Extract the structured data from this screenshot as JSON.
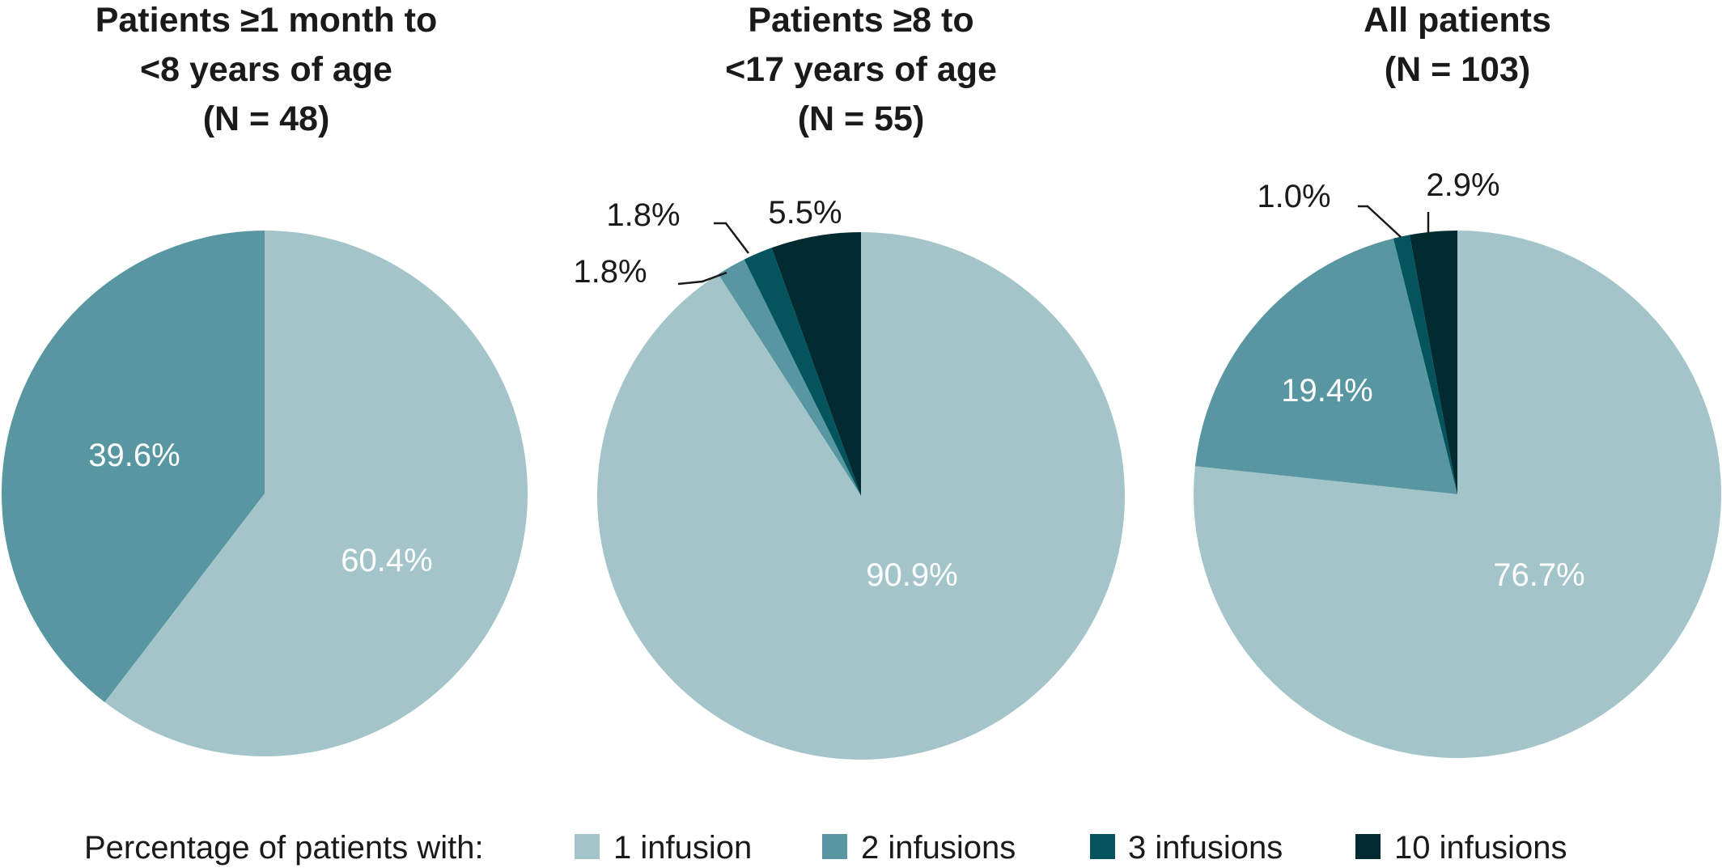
{
  "chart_data": [
    {
      "type": "pie",
      "title_lines": [
        "Patients ≥1 month to",
        "<8 years of age",
        "(N = 48)"
      ],
      "slices": [
        {
          "category": "1 infusion",
          "value": 60.4,
          "label": "60.4%"
        },
        {
          "category": "2 infusions",
          "value": 39.6,
          "label": "39.6%"
        }
      ]
    },
    {
      "type": "pie",
      "title_lines": [
        "Patients ≥8 to",
        "<17 years of age",
        "(N = 55)"
      ],
      "slices": [
        {
          "category": "1 infusion",
          "value": 90.9,
          "label": "90.9%"
        },
        {
          "category": "2 infusions",
          "value": 1.8,
          "label": "1.8%"
        },
        {
          "category": "3 infusions",
          "value": 1.8,
          "label": "1.8%"
        },
        {
          "category": "10 infusions",
          "value": 5.5,
          "label": "5.5%"
        }
      ]
    },
    {
      "type": "pie",
      "title_lines": [
        "All patients",
        "(N = 103)"
      ],
      "slices": [
        {
          "category": "1 infusion",
          "value": 76.7,
          "label": "76.7%"
        },
        {
          "category": "2 infusions",
          "value": 19.4,
          "label": "19.4%"
        },
        {
          "category": "3 infusions",
          "value": 1.0,
          "label": "1.0%"
        },
        {
          "category": "10 infusions",
          "value": 2.9,
          "label": "2.9%"
        }
      ]
    }
  ],
  "legend": {
    "title": "Percentage of patients with:",
    "placement": "bottom",
    "items": [
      {
        "label": "1 infusion",
        "color": "#a3c4c9"
      },
      {
        "label": "2 infusions",
        "color": "#5897a1"
      },
      {
        "label": "3 infusions",
        "color": "#03545d"
      },
      {
        "label": "10 infusions",
        "color": "#022a31"
      }
    ]
  }
}
